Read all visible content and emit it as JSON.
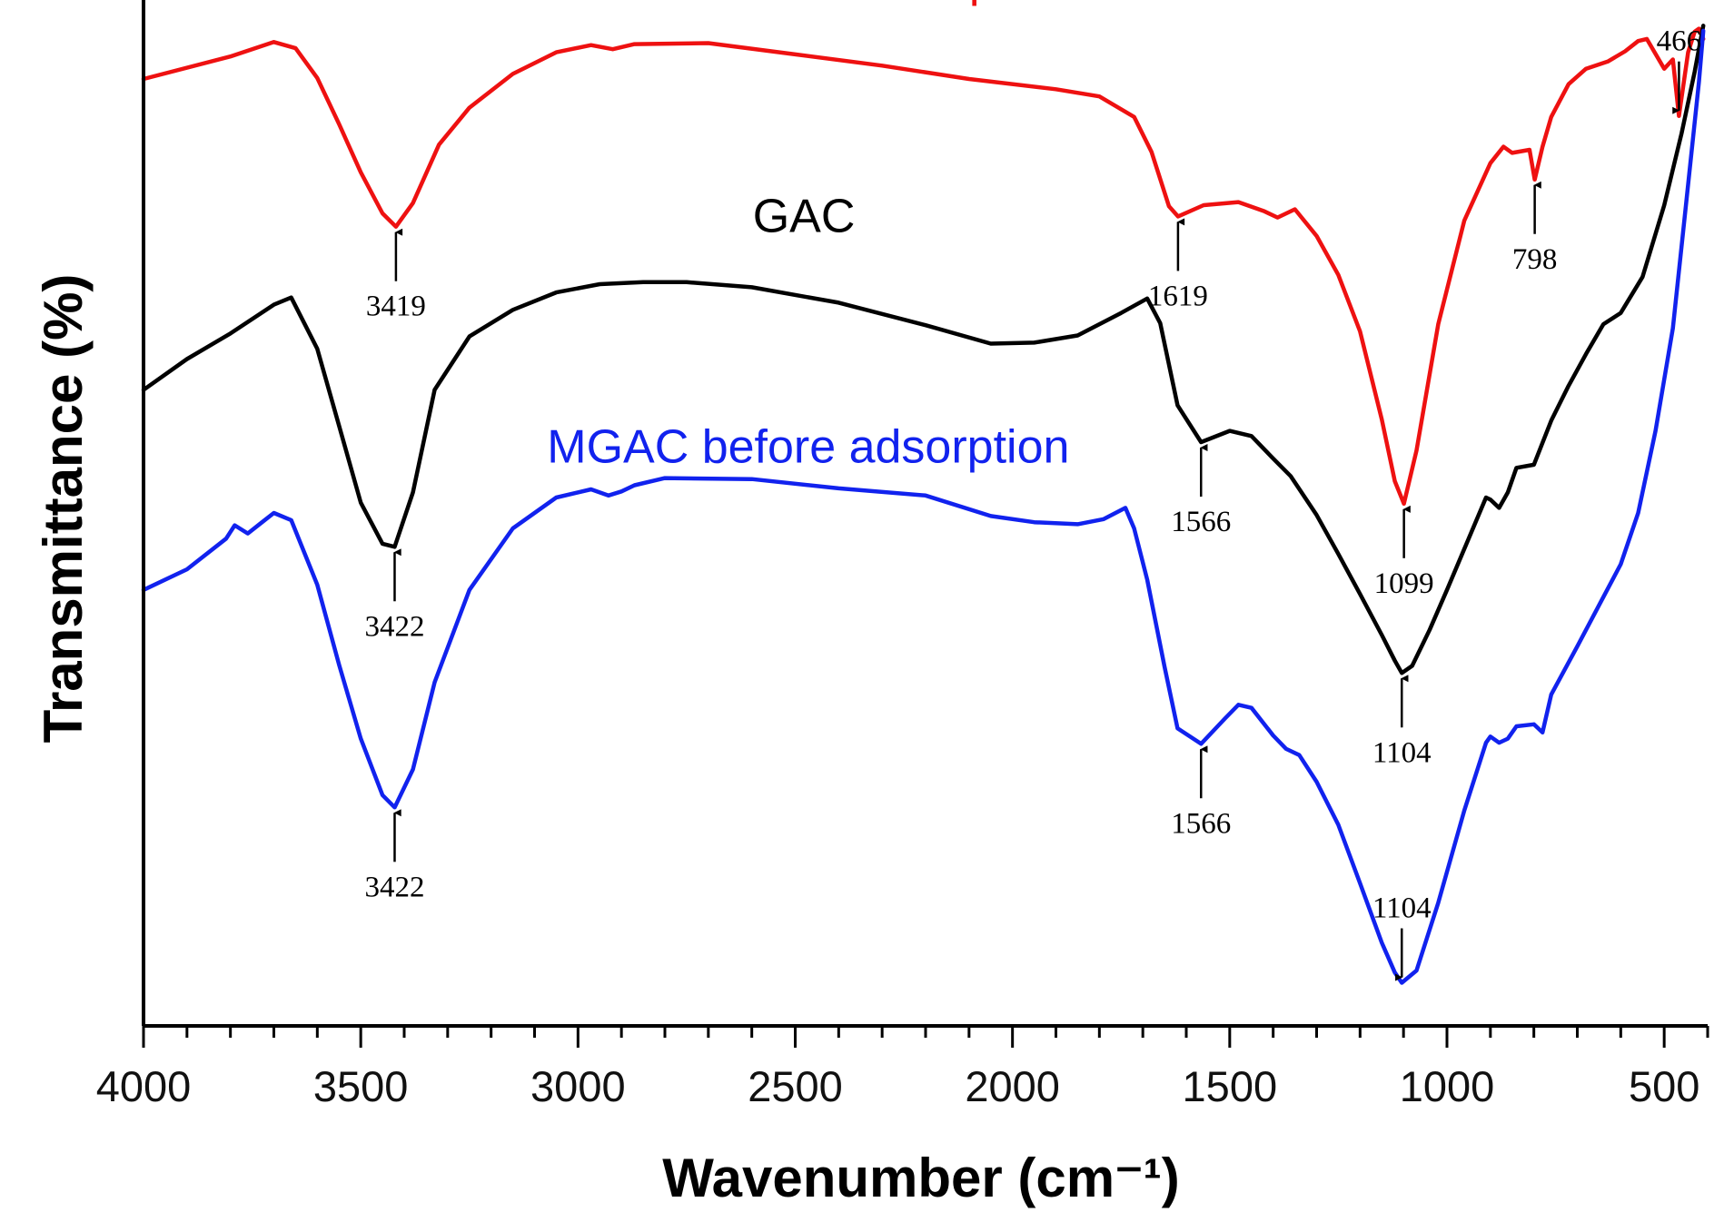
{
  "chart_data": {
    "type": "line",
    "title": "",
    "xlabel": "Wavenumber (cm⁻¹)",
    "ylabel": "Transmittance (%)",
    "x_reversed": true,
    "xlim": [
      4000,
      400
    ],
    "ylim": [
      0,
      100
    ],
    "x_ticks": [
      4000,
      3500,
      3000,
      2500,
      2000,
      1500,
      1000,
      500
    ],
    "y_tick_labels_shown": false,
    "grid": false,
    "legend": "none",
    "series": [
      {
        "name": "MGAC after adsorption",
        "color": "#ee1111",
        "x": [
          4000,
          3800,
          3700,
          3650,
          3600,
          3550,
          3500,
          3450,
          3419,
          3380,
          3320,
          3250,
          3150,
          3050,
          2970,
          2920,
          2870,
          2700,
          2500,
          2300,
          2100,
          1900,
          1800,
          1720,
          1680,
          1640,
          1619,
          1560,
          1480,
          1420,
          1390,
          1350,
          1300,
          1250,
          1200,
          1150,
          1120,
          1099,
          1070,
          1020,
          960,
          900,
          870,
          850,
          810,
          798,
          780,
          760,
          720,
          680,
          630,
          590,
          560,
          540,
          500,
          480,
          466,
          445,
          430,
          420,
          410
        ],
        "y": [
          92.3,
          94.5,
          95.9,
          95.3,
          92.4,
          87.9,
          83.2,
          79.2,
          77.9,
          80.2,
          85.9,
          89.5,
          92.8,
          94.9,
          95.6,
          95.2,
          95.7,
          95.8,
          94.7,
          93.6,
          92.3,
          91.3,
          90.6,
          88.6,
          85.2,
          79.9,
          78.9,
          80.0,
          80.3,
          79.4,
          78.8,
          79.6,
          77.0,
          73.2,
          67.7,
          59.1,
          53.1,
          50.9,
          56.1,
          68.4,
          78.5,
          84.1,
          85.7,
          85.1,
          85.4,
          82.5,
          85.7,
          88.6,
          91.8,
          93.3,
          94.0,
          95.0,
          96.0,
          96.2,
          93.3,
          94.2,
          88.7,
          94.9,
          96.9,
          97.2,
          96.2
        ]
      },
      {
        "name": "GAC",
        "color": "#000000",
        "x": [
          4000,
          3900,
          3800,
          3700,
          3660,
          3600,
          3550,
          3500,
          3450,
          3422,
          3380,
          3330,
          3250,
          3150,
          3050,
          2950,
          2850,
          2750,
          2600,
          2400,
          2200,
          2050,
          1950,
          1850,
          1750,
          1690,
          1660,
          1620,
          1566,
          1500,
          1450,
          1400,
          1360,
          1300,
          1250,
          1200,
          1150,
          1120,
          1104,
          1080,
          1040,
          1000,
          950,
          910,
          900,
          880,
          860,
          840,
          800,
          760,
          720,
          680,
          640,
          600,
          550,
          500,
          460,
          430,
          410
        ],
        "y": [
          62.0,
          65.0,
          67.5,
          70.3,
          71.0,
          66.0,
          58.5,
          51.0,
          47.0,
          46.7,
          52.0,
          62.0,
          67.2,
          69.8,
          71.5,
          72.3,
          72.5,
          72.5,
          72.0,
          70.5,
          68.3,
          66.5,
          66.6,
          67.3,
          69.5,
          70.9,
          68.5,
          60.5,
          56.9,
          58.0,
          57.5,
          55.3,
          53.6,
          49.8,
          46.0,
          42.1,
          38.1,
          35.6,
          34.4,
          35.1,
          38.6,
          42.5,
          47.5,
          51.5,
          51.3,
          50.5,
          52.0,
          54.4,
          54.7,
          59.0,
          62.4,
          65.5,
          68.4,
          69.5,
          73.0,
          80.0,
          87.0,
          93.0,
          97.5
        ]
      },
      {
        "name": "MGAC before adsorption",
        "color": "#1122ee",
        "x": [
          4000,
          3900,
          3810,
          3790,
          3760,
          3730,
          3700,
          3660,
          3600,
          3550,
          3500,
          3450,
          3422,
          3380,
          3330,
          3250,
          3150,
          3050,
          2970,
          2930,
          2900,
          2870,
          2800,
          2600,
          2400,
          2200,
          2050,
          1950,
          1850,
          1790,
          1740,
          1720,
          1690,
          1650,
          1620,
          1566,
          1510,
          1480,
          1450,
          1400,
          1370,
          1340,
          1300,
          1250,
          1200,
          1150,
          1120,
          1104,
          1070,
          1020,
          960,
          910,
          900,
          880,
          860,
          840,
          800,
          780,
          760,
          700,
          650,
          600,
          560,
          520,
          480,
          450,
          420,
          410
        ],
        "y": [
          42.5,
          44.5,
          47.5,
          48.8,
          48.0,
          49.0,
          50.0,
          49.3,
          43.0,
          35.2,
          28.0,
          22.5,
          21.3,
          25.0,
          33.5,
          42.5,
          48.5,
          51.5,
          52.3,
          51.7,
          52.1,
          52.7,
          53.4,
          53.3,
          52.4,
          51.7,
          49.7,
          49.1,
          48.9,
          49.4,
          50.5,
          48.5,
          43.5,
          35.0,
          29.0,
          27.5,
          30.0,
          31.3,
          31.0,
          28.3,
          27.0,
          26.4,
          23.8,
          19.6,
          13.9,
          8.1,
          5.2,
          4.2,
          5.4,
          12.0,
          21.0,
          27.6,
          28.2,
          27.6,
          28.0,
          29.2,
          29.4,
          28.6,
          32.3,
          37.0,
          41.0,
          45.0,
          50.0,
          58.0,
          68.0,
          80.0,
          92.0,
          97.0
        ]
      }
    ],
    "series_labels": [
      {
        "text": "MGAC after adsorption",
        "series": 0,
        "x": 2420,
        "y": 100.4
      },
      {
        "text": "GAC",
        "series": 1,
        "x": 2480,
        "y": 77.4
      },
      {
        "text": "MGAC before adsorption",
        "series": 2,
        "x": 2470,
        "y": 54.9
      }
    ],
    "annotations": [
      {
        "label": "3419",
        "x": 3419,
        "series": 0,
        "direction": "up"
      },
      {
        "label": "1619",
        "x": 1619,
        "series": 0,
        "direction": "up"
      },
      {
        "label": "1099",
        "x": 1099,
        "series": 0,
        "direction": "up"
      },
      {
        "label": "798",
        "x": 798,
        "series": 0,
        "direction": "up"
      },
      {
        "label": "466",
        "x": 466,
        "series": 0,
        "direction": "down"
      },
      {
        "label": "3422",
        "x": 3422,
        "series": 1,
        "direction": "up"
      },
      {
        "label": "1566",
        "x": 1566,
        "series": 1,
        "direction": "up"
      },
      {
        "label": "1104",
        "x": 1104,
        "series": 1,
        "direction": "up"
      },
      {
        "label": "3422",
        "x": 3422,
        "series": 2,
        "direction": "up"
      },
      {
        "label": "1566",
        "x": 1566,
        "series": 2,
        "direction": "up"
      },
      {
        "label": "1104",
        "x": 1104,
        "series": 2,
        "direction": "down"
      }
    ]
  }
}
